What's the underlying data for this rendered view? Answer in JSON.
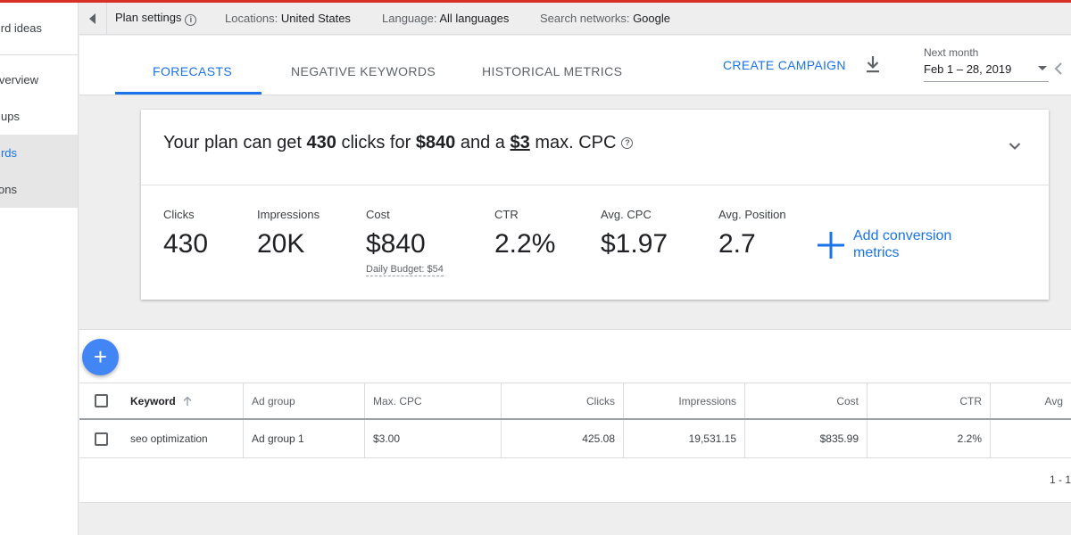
{
  "sidebar": {
    "items": [
      {
        "label": "Discover new keywords / Keyword ideas",
        "visible": "rd ideas"
      },
      {
        "label": "Plan overview",
        "visible": "verview"
      },
      {
        "label": "Ad groups",
        "visible": "ups"
      },
      {
        "label": "Keywords",
        "visible": "rds"
      },
      {
        "label": "Locations",
        "visible": "ons"
      }
    ]
  },
  "settings_bar": {
    "title": "Plan settings",
    "locations_label": "Locations:",
    "locations_value": "United States",
    "language_label": "Language:",
    "language_value": "All languages",
    "networks_label": "Search networks:",
    "networks_value": "Google"
  },
  "tabs": [
    {
      "label": "FORECASTS",
      "active": true
    },
    {
      "label": "NEGATIVE KEYWORDS",
      "active": false
    },
    {
      "label": "HISTORICAL METRICS",
      "active": false
    }
  ],
  "toolbar": {
    "create_campaign": "CREATE CAMPAIGN",
    "date_label": "Next month",
    "date_value": "Feb 1 – 28, 2019"
  },
  "forecast": {
    "headline_prefix": "Your plan can get",
    "clicks": "430",
    "clicks_for": "clicks for",
    "cost": "$840",
    "and_a": "and a",
    "max_cpc": "$3",
    "max_cpc_suffix": "max. CPC",
    "metrics": [
      {
        "label": "Clicks",
        "value": "430"
      },
      {
        "label": "Impressions",
        "value": "20K"
      },
      {
        "label": "Cost",
        "value": "$840"
      },
      {
        "label": "CTR",
        "value": "2.2%"
      },
      {
        "label": "Avg. CPC",
        "value": "$1.97"
      },
      {
        "label": "Avg. Position",
        "value": "2.7"
      }
    ],
    "daily_budget": "Daily Budget: $54",
    "add_conversion": "Add conversion metrics"
  },
  "table": {
    "columns": [
      "Keyword",
      "Ad group",
      "Max. CPC",
      "Clicks",
      "Impressions",
      "Cost",
      "CTR",
      "Avg"
    ],
    "rows": [
      [
        "seo optimization",
        "Ad group 1",
        "$3.00",
        "425.08",
        "19,531.15",
        "$835.99",
        "2.2%"
      ]
    ],
    "pager": "1 - 1"
  },
  "colors": {
    "accent": "#1a73e8",
    "top_line": "#d93025",
    "fab": "#4285f4"
  }
}
